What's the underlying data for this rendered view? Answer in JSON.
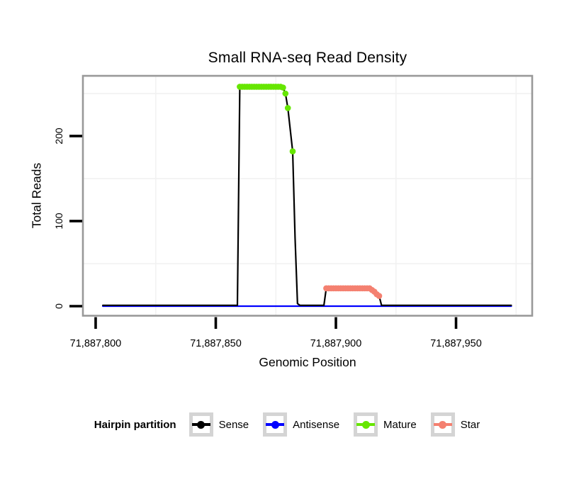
{
  "chart_data": {
    "type": "line",
    "title": "Small RNA-seq Read Density",
    "xlabel": "Genomic Position",
    "ylabel": "Total Reads",
    "xlim": [
      71887794.7,
      71887981.7
    ],
    "ylim": [
      -11.25,
      270.8
    ],
    "x_axis": {
      "ticks": [
        71887800,
        71887850,
        71887900,
        71887950
      ],
      "labels": [
        "71,887,800",
        "71,887,850",
        "71,887,900",
        "71,887,950"
      ]
    },
    "y_axis": {
      "ticks": [
        0,
        100,
        200
      ],
      "labels": [
        "0",
        "100",
        "200"
      ]
    },
    "grid": {
      "minor_x": [
        71887825,
        71887875,
        71887925,
        71887975
      ],
      "minor_y": [
        50,
        150,
        250
      ],
      "color": "#f2f2f2"
    },
    "panel_border_color": "#999999",
    "series": [
      {
        "name": "Antisense",
        "kind": "line",
        "color": "#0000ff",
        "points": [
          [
            71887803,
            0
          ],
          [
            71887973,
            0
          ]
        ]
      },
      {
        "name": "Sense",
        "kind": "line",
        "color": "#000000",
        "points": [
          [
            71887803,
            1
          ],
          [
            71887859,
            1
          ],
          [
            71887860,
            258
          ],
          [
            71887861,
            259
          ],
          [
            71887877,
            259
          ],
          [
            71887878,
            257
          ],
          [
            71887879,
            250
          ],
          [
            71887880,
            233
          ],
          [
            71887882,
            182
          ],
          [
            71887883,
            80
          ],
          [
            71887884,
            3
          ],
          [
            71887885,
            1
          ],
          [
            71887895,
            1
          ],
          [
            71887896,
            21
          ],
          [
            71887914,
            21
          ],
          [
            71887915,
            19
          ],
          [
            71887916,
            17
          ],
          [
            71887917,
            14
          ],
          [
            71887918,
            12
          ],
          [
            71887919,
            1
          ],
          [
            71887973,
            1
          ]
        ]
      },
      {
        "name": "Mature",
        "kind": "dots",
        "color": "#66e600",
        "points": [
          [
            71887860,
            258
          ],
          [
            71887861,
            258
          ],
          [
            71887862,
            258
          ],
          [
            71887863,
            258
          ],
          [
            71887864,
            258
          ],
          [
            71887865,
            258
          ],
          [
            71887866,
            258
          ],
          [
            71887867,
            258
          ],
          [
            71887868,
            258
          ],
          [
            71887869,
            258
          ],
          [
            71887870,
            258
          ],
          [
            71887871,
            258
          ],
          [
            71887872,
            258
          ],
          [
            71887873,
            258
          ],
          [
            71887874,
            258
          ],
          [
            71887875,
            258
          ],
          [
            71887876,
            258
          ],
          [
            71887877,
            258
          ],
          [
            71887878,
            257
          ],
          [
            71887879,
            250
          ],
          [
            71887880,
            233
          ],
          [
            71887882,
            182
          ]
        ]
      },
      {
        "name": "Star",
        "kind": "dots",
        "color": "#f48070",
        "points": [
          [
            71887896,
            21
          ],
          [
            71887897,
            21
          ],
          [
            71887898,
            21
          ],
          [
            71887899,
            21
          ],
          [
            71887900,
            21
          ],
          [
            71887901,
            21
          ],
          [
            71887902,
            21
          ],
          [
            71887903,
            21
          ],
          [
            71887904,
            21
          ],
          [
            71887905,
            21
          ],
          [
            71887906,
            21
          ],
          [
            71887907,
            21
          ],
          [
            71887908,
            21
          ],
          [
            71887909,
            21
          ],
          [
            71887910,
            21
          ],
          [
            71887911,
            21
          ],
          [
            71887912,
            21
          ],
          [
            71887913,
            21
          ],
          [
            71887914,
            21
          ],
          [
            71887915,
            19
          ],
          [
            71887916,
            17
          ],
          [
            71887917,
            14
          ],
          [
            71887918,
            12
          ]
        ]
      }
    ]
  },
  "legend": {
    "title": "Hairpin partition",
    "items": [
      {
        "label": "Sense",
        "color": "#000000"
      },
      {
        "label": "Antisense",
        "color": "#0000ff"
      },
      {
        "label": "Mature",
        "color": "#66e600"
      },
      {
        "label": "Star",
        "color": "#f48070"
      }
    ]
  }
}
